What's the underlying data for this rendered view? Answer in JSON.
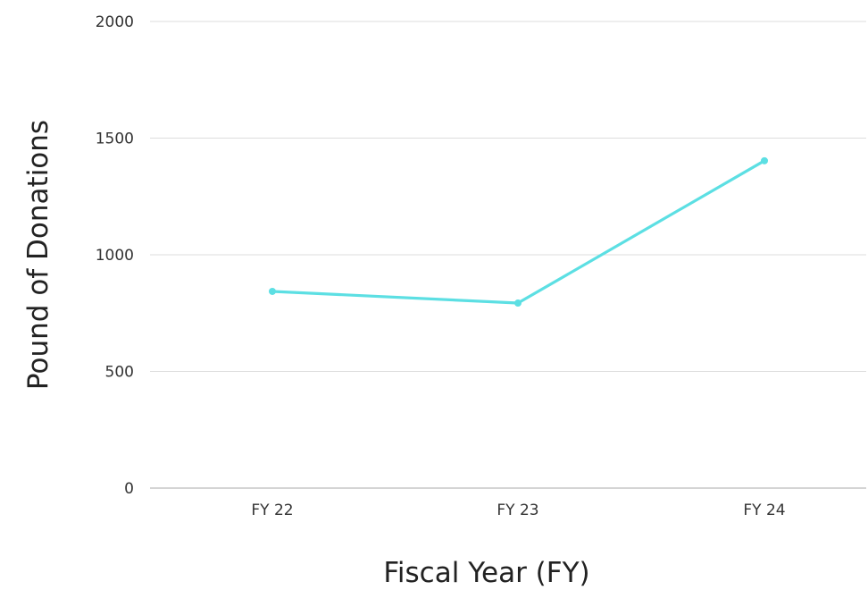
{
  "chart_data": {
    "type": "line",
    "title": "",
    "xlabel": "Fiscal Year (FY)",
    "ylabel": "Pound of Donations",
    "categories": [
      "FY 22",
      "FY 23",
      "FY 24"
    ],
    "series": [
      {
        "values": [
          843,
          793,
          1403
        ],
        "color": "#5cdfe3"
      }
    ],
    "ylim": [
      0,
      2000
    ],
    "yticks": [
      0,
      500,
      1000,
      1500,
      2000
    ],
    "ytick_labels": [
      "0",
      "500",
      "1000",
      "1500",
      "2000"
    ],
    "grid": true,
    "legend": "none"
  },
  "colors": {
    "line": "#5cdfe3",
    "grid": "#dddddd",
    "axis": "#bbbbbb"
  }
}
